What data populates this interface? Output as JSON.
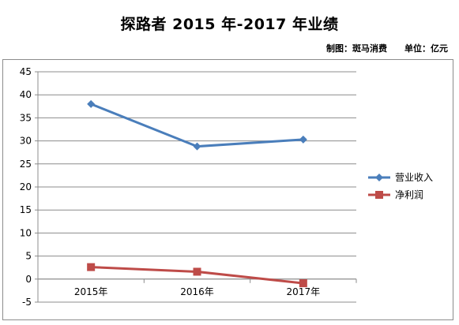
{
  "header": {
    "title": "探路者 2015 年-2017 年业绩",
    "credit": "制图：斑马消费",
    "unit": "单位：亿元"
  },
  "chart_data": {
    "type": "line",
    "title": "探路者 2015 年-2017 年业绩",
    "categories": [
      "2015年",
      "2016年",
      "2017年"
    ],
    "series": [
      {
        "name": "营业收入",
        "values": [
          38.0,
          28.8,
          30.3
        ],
        "color": "#4a7ebb",
        "marker": "diamond"
      },
      {
        "name": "净利润",
        "values": [
          2.6,
          1.6,
          -0.9
        ],
        "color": "#be4b48",
        "marker": "square"
      }
    ],
    "ylim": [
      -5,
      45
    ],
    "yticks": [
      -5,
      0,
      5,
      10,
      15,
      20,
      25,
      30,
      35,
      40,
      45
    ],
    "grid": true,
    "legend_position": "right",
    "xlabel": "",
    "ylabel": ""
  }
}
